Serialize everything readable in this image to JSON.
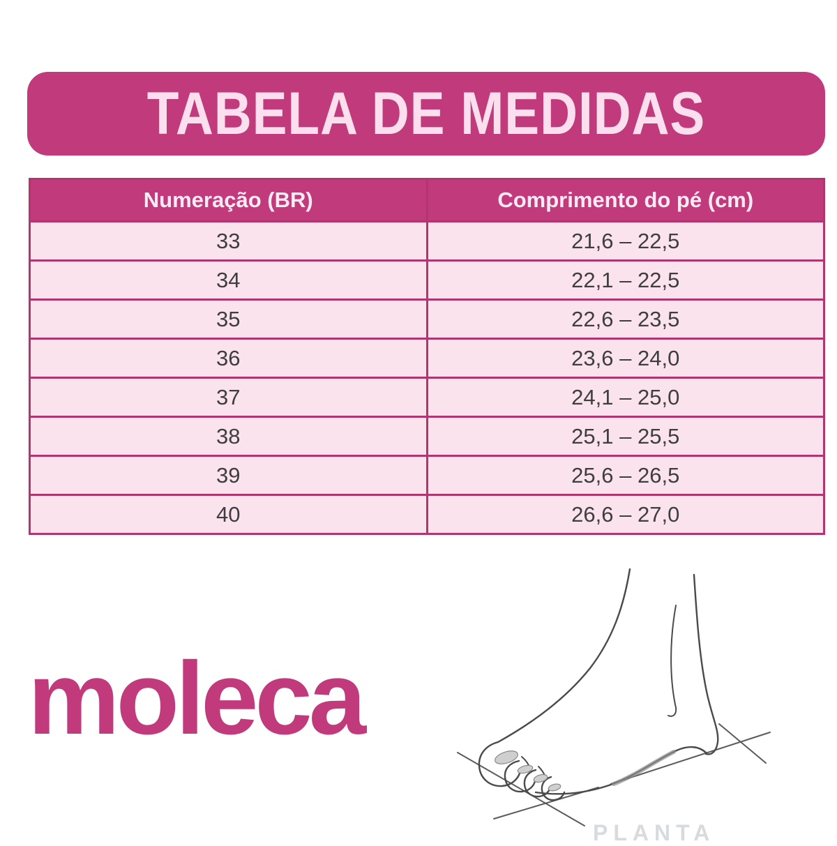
{
  "banner": {
    "title": "TABELA DE MEDIDAS"
  },
  "chart_data": {
    "type": "table",
    "title": "TABELA DE MEDIDAS",
    "columns": [
      "Numeração (BR)",
      "Comprimento do pé (cm)"
    ],
    "rows": [
      [
        "33",
        "21,6 – 22,5"
      ],
      [
        "34",
        "22,1 – 22,5"
      ],
      [
        "35",
        "22,6 – 23,5"
      ],
      [
        "36",
        "23,6 – 24,0"
      ],
      [
        "37",
        "24,1 – 25,0"
      ],
      [
        "38",
        "25,1 – 25,5"
      ],
      [
        "39",
        "25,6 – 26,5"
      ],
      [
        "40",
        "26,6 – 27,0"
      ]
    ]
  },
  "logo": {
    "text": "moleca"
  },
  "footnote": {
    "watermark": "PLANTA"
  },
  "icons": {
    "foot_illustration": "foot-standing-on-floor-line-drawing"
  },
  "colors": {
    "magenta": "#c03a7c",
    "border_c": "#b23570",
    "row_pink": "#fbe3ee",
    "title_text": "#fbdfee",
    "header_text": "#fdeaf3",
    "cell_text": "#3e3e3e"
  }
}
